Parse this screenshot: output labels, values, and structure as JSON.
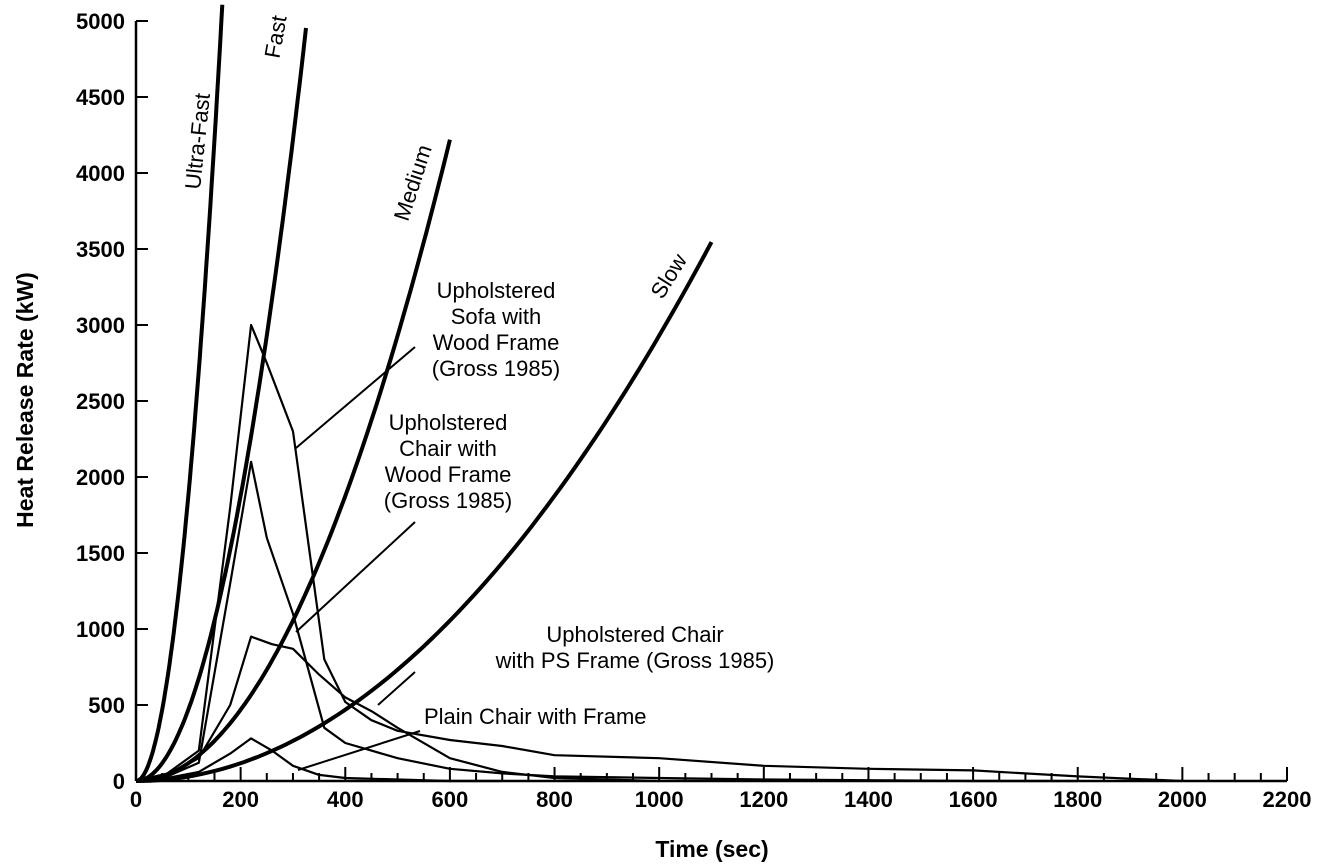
{
  "chart_data": {
    "type": "line",
    "xlabel": "Time (sec)",
    "ylabel": "Heat Release Rate (kW)",
    "xlim": [
      0,
      2200
    ],
    "ylim": [
      0,
      5000
    ],
    "x_ticks": [
      0,
      200,
      400,
      600,
      800,
      1000,
      1200,
      1400,
      1600,
      1800,
      2000,
      2200
    ],
    "y_ticks": [
      0,
      500,
      1000,
      1500,
      2000,
      2500,
      3000,
      3500,
      4000,
      4500,
      5000
    ],
    "x_minor_step": 50,
    "grid": false,
    "legend": "none",
    "growth_curves": [
      {
        "name": "Ultra-Fast",
        "alpha": 0.1876,
        "t_end": 165
      },
      {
        "name": "Fast",
        "alpha": 0.0469,
        "t_end": 325
      },
      {
        "name": "Medium",
        "alpha": 0.01172,
        "t_end": 600
      },
      {
        "name": "Slow",
        "alpha": 0.00293,
        "t_end": 1100
      }
    ],
    "series": [
      {
        "id": "sofa",
        "label_lines": [
          "Upholstered",
          "Sofa with",
          "Wood Frame",
          "(Gross 1985)"
        ],
        "x": [
          0,
          60,
          120,
          180,
          220,
          250,
          300,
          360,
          400,
          450,
          500,
          600,
          700,
          800,
          1000,
          1200,
          1400,
          1600,
          1800,
          2000
        ],
        "y": [
          0,
          50,
          200,
          1800,
          3000,
          2750,
          2300,
          800,
          520,
          400,
          330,
          270,
          230,
          170,
          150,
          100,
          80,
          70,
          30,
          0
        ]
      },
      {
        "id": "chair-wood",
        "label_lines": [
          "Upholstered",
          "Chair with",
          "Wood Frame",
          "(Gross 1985)"
        ],
        "x": [
          0,
          60,
          120,
          180,
          220,
          250,
          300,
          360,
          400,
          450,
          500,
          600,
          700,
          800,
          1000,
          1200,
          1400,
          1600,
          1800
        ],
        "y": [
          0,
          30,
          120,
          1300,
          2100,
          1600,
          1100,
          350,
          250,
          200,
          150,
          80,
          50,
          30,
          20,
          10,
          5,
          0,
          0
        ]
      },
      {
        "id": "chair-ps",
        "label_lines": [
          "Upholstered Chair",
          "with PS Frame (Gross 1985)"
        ],
        "x": [
          0,
          60,
          120,
          180,
          220,
          260,
          300,
          350,
          400,
          450,
          500,
          600,
          700,
          800,
          1000
        ],
        "y": [
          0,
          40,
          150,
          500,
          950,
          900,
          870,
          700,
          550,
          460,
          350,
          150,
          60,
          20,
          0
        ]
      },
      {
        "id": "plain-chair",
        "label_lines": [
          "Plain Chair with Frame"
        ],
        "x": [
          0,
          60,
          120,
          180,
          220,
          260,
          300,
          350,
          400,
          500,
          600,
          700
        ],
        "y": [
          0,
          20,
          60,
          180,
          280,
          200,
          100,
          40,
          20,
          10,
          0,
          0
        ]
      }
    ]
  }
}
